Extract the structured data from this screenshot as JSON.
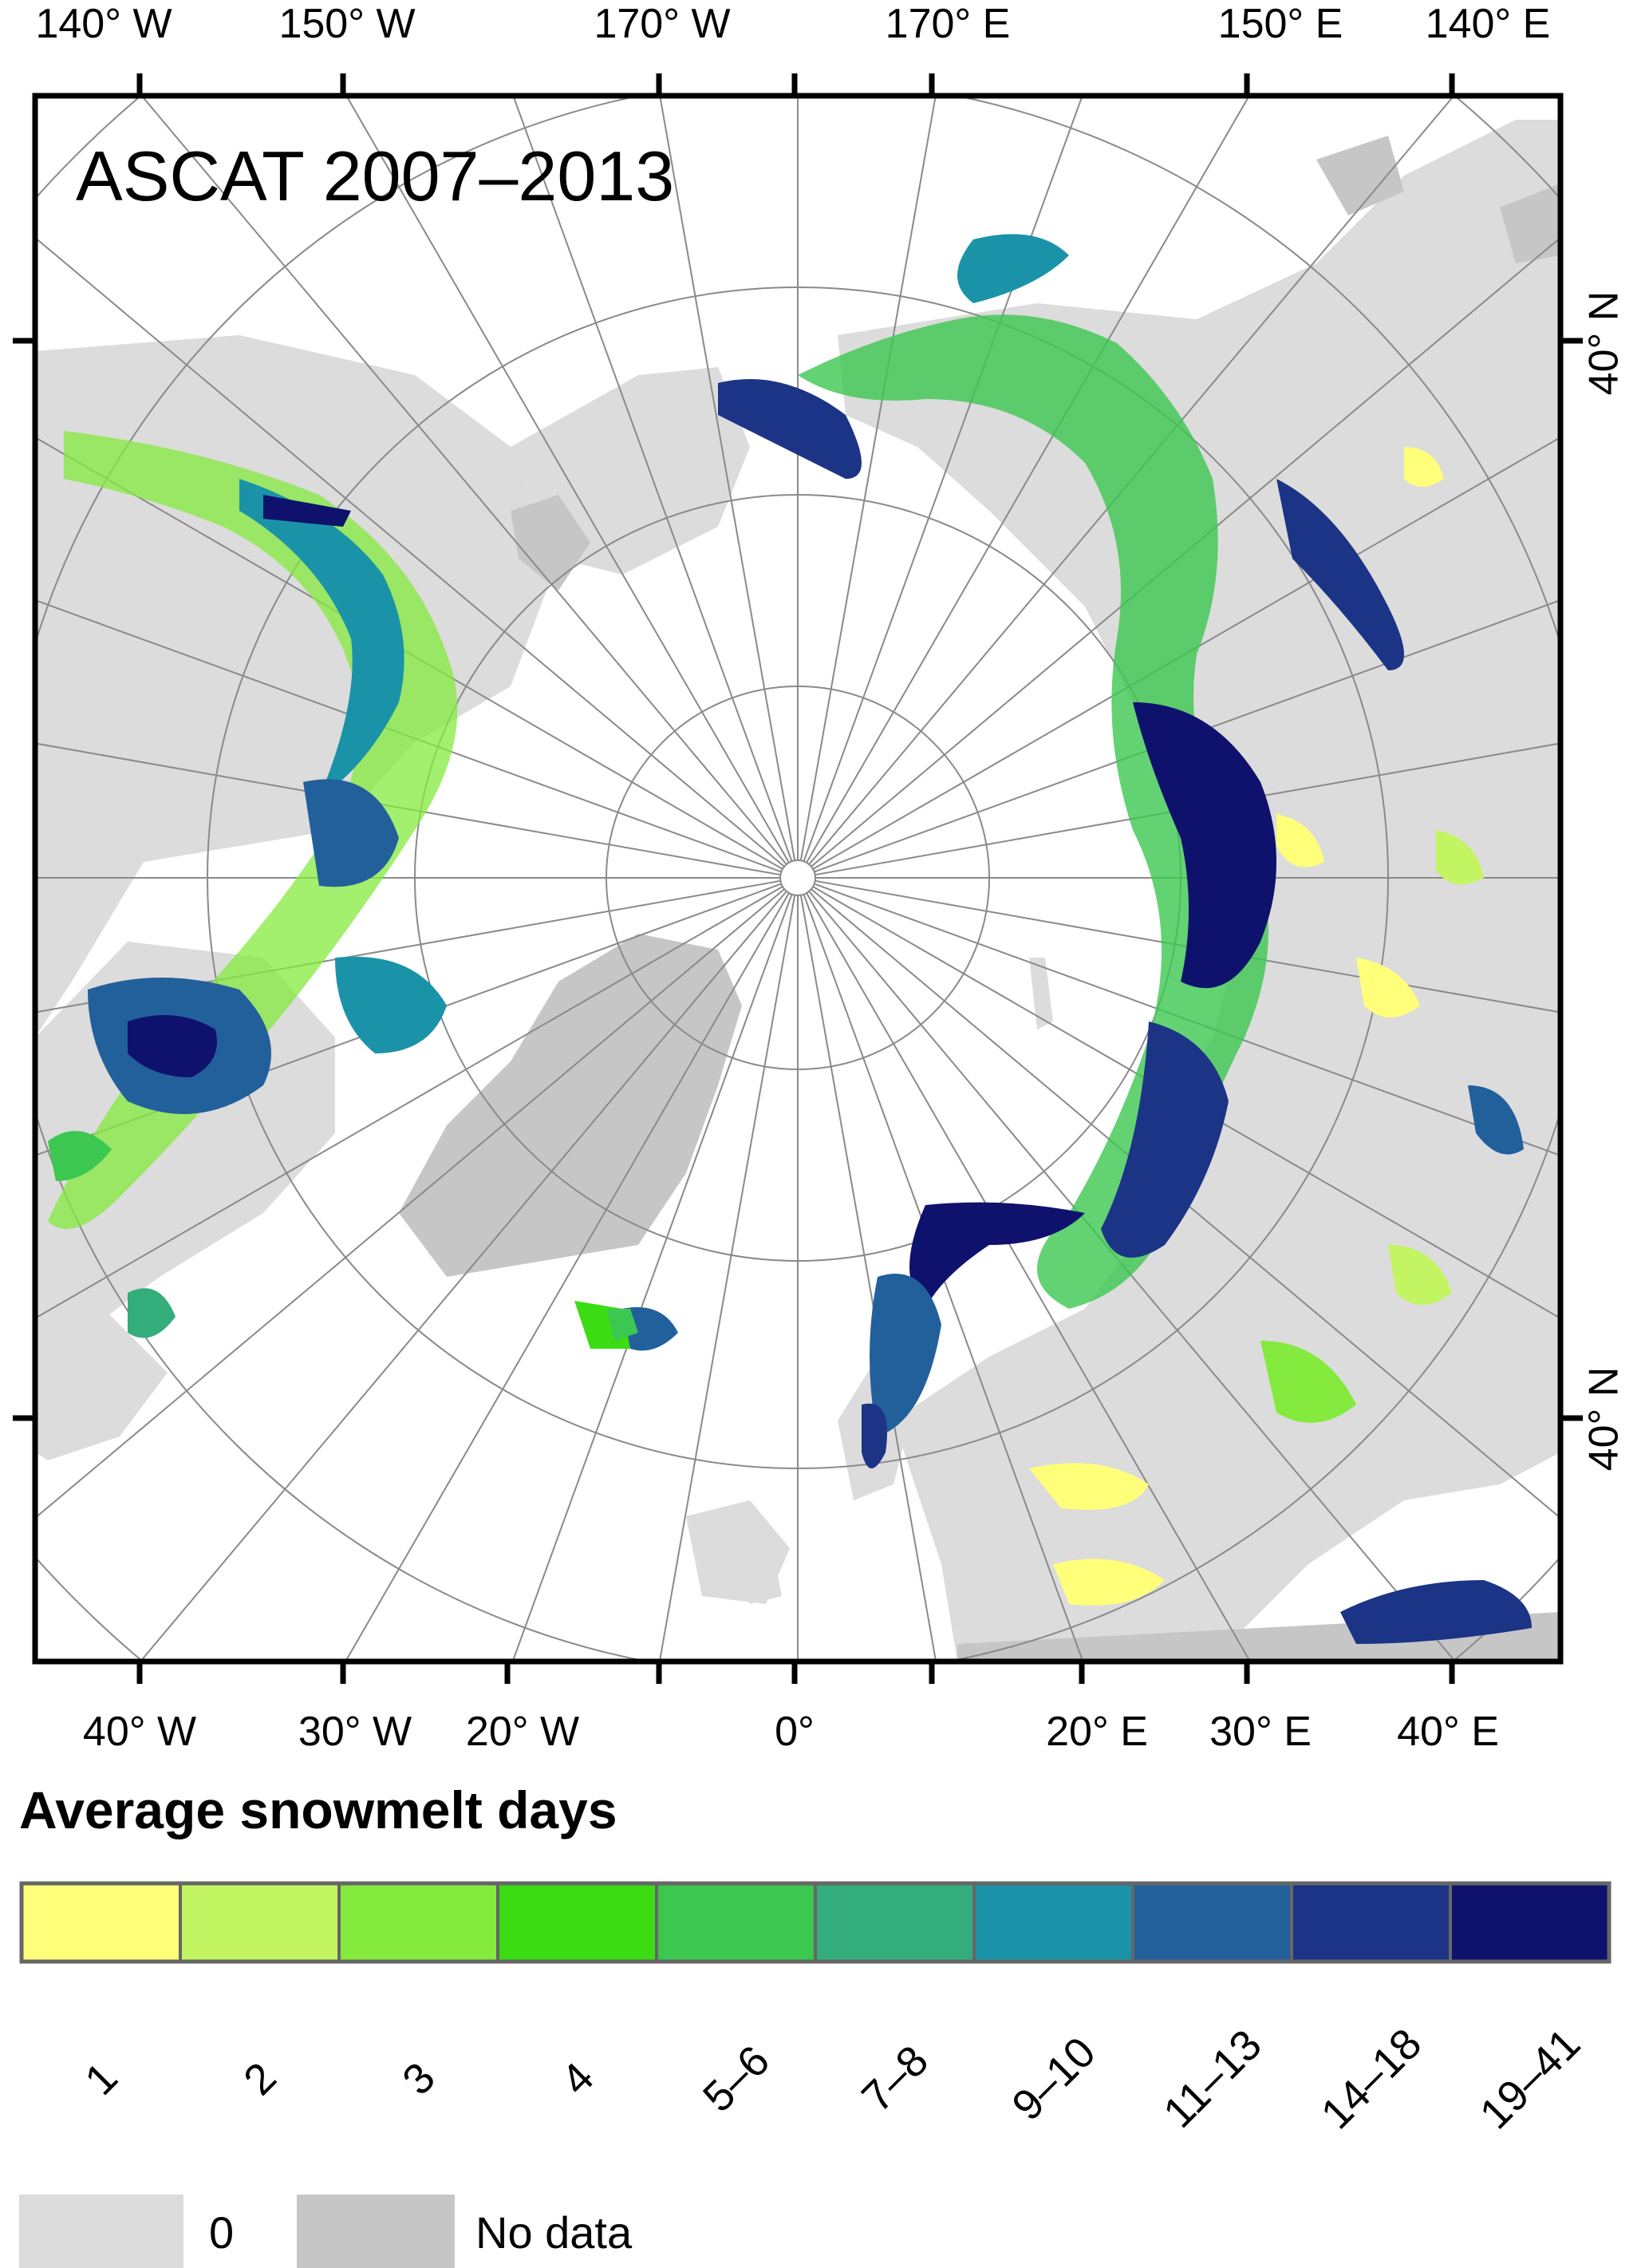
{
  "map": {
    "title": "ASCAT 2007–2013",
    "top_ticks": [
      "140°  W",
      "150°  W",
      "170°  W",
      "170°  E",
      "150°  E",
      "140°  E"
    ],
    "bottom_ticks": [
      "40°  W",
      "30°  W",
      "20°  W",
      "0°",
      "20°  E",
      "30°  E",
      "40°  E"
    ],
    "right_ticks": [
      "40°  N",
      "40°  N"
    ],
    "colors": {
      "ocean": "#ffffff",
      "land_zero": "#dcdcdc",
      "no_data": "#c6c6c6",
      "graticule": "#8a8a8a"
    }
  },
  "legend": {
    "title": "Average snowmelt days",
    "classes": [
      {
        "label": "1",
        "color": "#ffff7a"
      },
      {
        "label": "2",
        "color": "#c2f561"
      },
      {
        "label": "3",
        "color": "#84ea3e"
      },
      {
        "label": "4",
        "color": "#3cdc12"
      },
      {
        "label": "5–6",
        "color": "#3cc750"
      },
      {
        "label": "7–8",
        "color": "#34ad7c"
      },
      {
        "label": "9–10",
        "color": "#1a93a8"
      },
      {
        "label": "11–13",
        "color": "#22609c"
      },
      {
        "label": "14–18",
        "color": "#1c3486"
      },
      {
        "label": "19–41",
        "color": "#0e126c"
      }
    ],
    "zero_label": "0",
    "no_data_label": "No data"
  }
}
